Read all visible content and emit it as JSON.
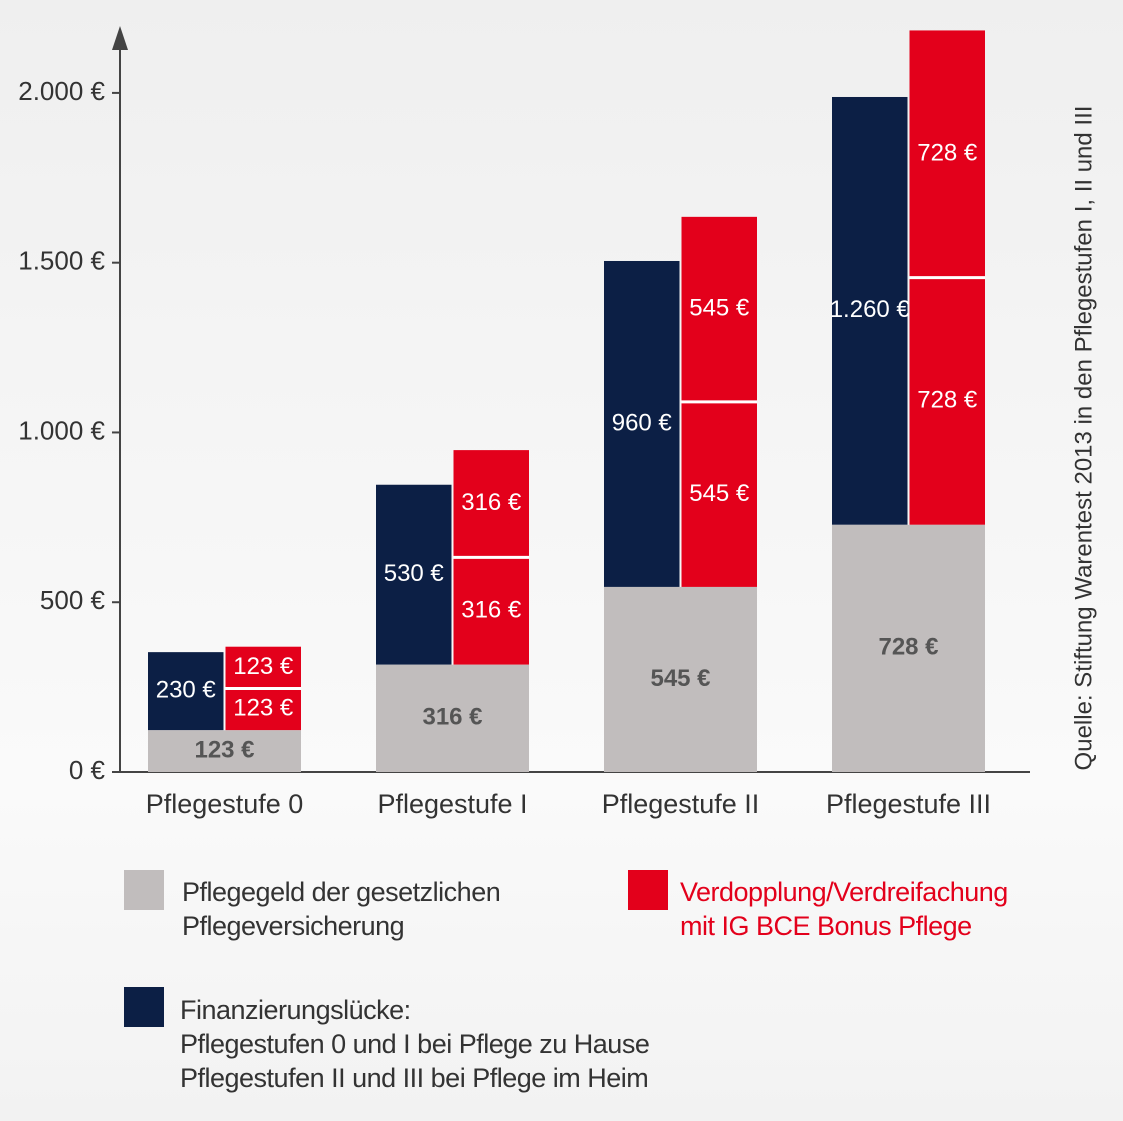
{
  "chart_data": {
    "type": "stacked-bar-pair",
    "source": "Quelle: Stiftung Warentest 2013 in den Pflegestufen I, II und III",
    "categories": [
      "Pflegestufe 0",
      "Pflegestufe I",
      "Pflegestufe II",
      "Pflegestufe III"
    ],
    "ylim": [
      0,
      2200
    ],
    "yticks": [
      {
        "value": 0,
        "label": "0 €"
      },
      {
        "value": 500,
        "label": "500 €"
      },
      {
        "value": 1000,
        "label": "1.000 €"
      },
      {
        "value": 1500,
        "label": "1.500 €"
      },
      {
        "value": 2000,
        "label": "2.000 €"
      }
    ],
    "series": [
      {
        "name": "Pflegegeld der gesetzlichen\nPflegeversicherung",
        "color": "#c1bdbd",
        "values": [
          123,
          316,
          545,
          728
        ],
        "value_labels": [
          "123 €",
          "316 €",
          "545 €",
          "728 €"
        ]
      },
      {
        "name": "Finanzierungslücke:\nPflegestufen 0 und I bei Pflege zu Hause\nPflegestufen II und III bei Pflege im Heim",
        "color": "#0c1f45",
        "values": [
          230,
          530,
          960,
          1260
        ],
        "value_labels": [
          "230 €",
          "530 €",
          "960 €",
          "1.260 €"
        ]
      },
      {
        "name": "Verdopplung/Verdreifachung\nmit IG BCE Bonus Pflege",
        "color": "#e3001b",
        "values": [
          [
            123,
            123
          ],
          [
            316,
            316
          ],
          [
            545,
            545
          ],
          [
            728,
            728
          ]
        ],
        "value_labels": [
          [
            "123 €",
            "123 €"
          ],
          [
            "316 €",
            "316 €"
          ],
          [
            "545 €",
            "545 €"
          ],
          [
            "728 €",
            "728 €"
          ]
        ]
      }
    ]
  }
}
